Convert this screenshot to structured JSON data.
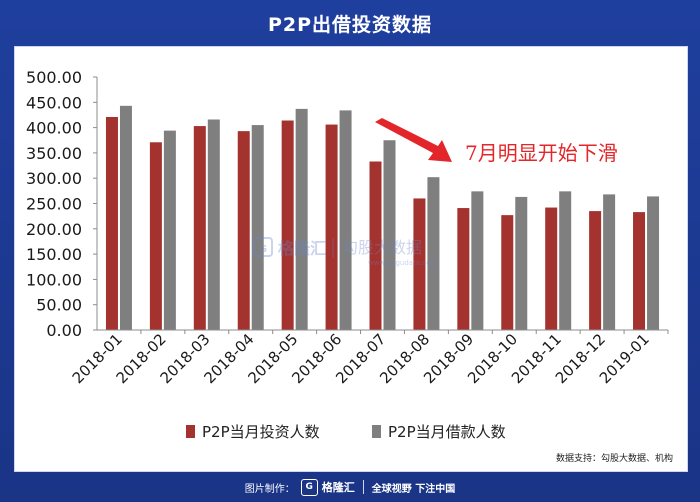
{
  "header": {
    "title": "P2P出借投资数据"
  },
  "chart_data": {
    "type": "bar",
    "categories": [
      "2018-01",
      "2018-02",
      "2018-03",
      "2018-04",
      "2018-05",
      "2018-06",
      "2018-07",
      "2018-08",
      "2018-09",
      "2018-10",
      "2018-11",
      "2018-12",
      "2019-01"
    ],
    "series": [
      {
        "name": "P2P当月投资人数",
        "color": "#a4322f",
        "values": [
          421,
          371,
          403,
          393,
          414,
          406,
          333,
          260,
          241,
          227,
          242,
          235,
          233
        ]
      },
      {
        "name": "P2P当月借款人数",
        "color": "#7f7f7f",
        "values": [
          443,
          394,
          416,
          405,
          437,
          434,
          375,
          302,
          274,
          263,
          274,
          268,
          264
        ]
      }
    ],
    "y_ticks": [
      "0.00",
      "50.00",
      "100.00",
      "150.00",
      "200.00",
      "250.00",
      "300.00",
      "350.00",
      "400.00",
      "450.00",
      "500.00"
    ],
    "ylim": [
      0,
      500
    ],
    "grid": false,
    "legend_position": "bottom",
    "annotation": "7月明显开始下滑",
    "xlabel": "",
    "ylabel": "",
    "title": ""
  },
  "watermark": {
    "brand": "格隆汇",
    "partner": "勾股大数据",
    "url": "www.gogudata.com"
  },
  "source": "数据支持：勾股大数据、机构",
  "footer": {
    "made_by": "图片制作：",
    "logo_letter": "G",
    "brand": "格隆汇",
    "slogan": "全球视野 下注中国"
  },
  "colors": {
    "frame": "#1d3a8f",
    "annotation": "#e3262a",
    "arrow": "#e3262a"
  }
}
